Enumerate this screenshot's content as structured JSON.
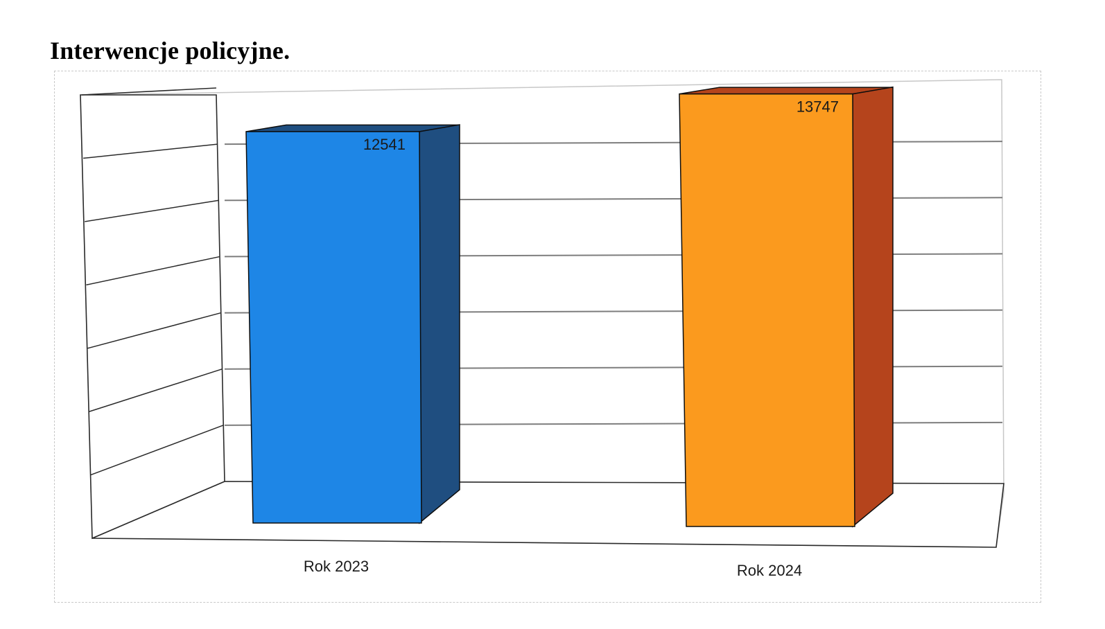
{
  "page": {
    "title": "Interwencje policyjne."
  },
  "chart_data": {
    "type": "bar",
    "style": "3d-column",
    "categories": [
      "Rok 2023",
      "Rok 2024"
    ],
    "values": [
      12541,
      13747
    ],
    "data_labels": [
      "12541",
      "13747"
    ],
    "ylim": [
      0,
      14000
    ],
    "grid": true,
    "legend": "none",
    "colors": {
      "front": [
        "#1e86e6",
        "#fb9a1e"
      ],
      "side": [
        "#1f4e80",
        "#b5441c"
      ]
    }
  }
}
